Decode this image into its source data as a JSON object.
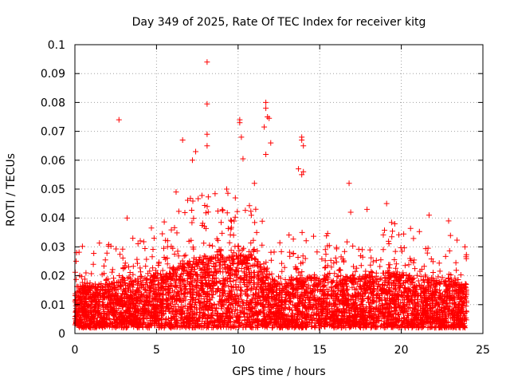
{
  "chart_data": {
    "type": "scatter",
    "title": "Day 349 of 2025, Rate Of TEC Index for receiver kitg",
    "xlabel": "GPS time / hours",
    "ylabel": "ROTI / TECUs",
    "xlim": [
      0,
      25
    ],
    "ylim": [
      0,
      0.1
    ],
    "xticks": [
      0,
      5,
      10,
      15,
      20,
      25
    ],
    "xtick_labels": [
      "0",
      "5",
      "10",
      "15",
      "20",
      "25"
    ],
    "yticks": [
      0,
      0.01,
      0.02,
      0.03,
      0.04,
      0.05,
      0.06,
      0.07,
      0.08,
      0.09,
      0.1
    ],
    "ytick_labels": [
      "0",
      "0.01",
      "0.02",
      "0.03",
      "0.04",
      "0.05",
      "0.06",
      "0.07",
      "0.08",
      "0.09",
      "0.1"
    ],
    "grid": true,
    "marker": "+",
    "color": "#ff0000",
    "data_range_hours": [
      0,
      24
    ],
    "bulk_floor": 0.002,
    "bulk_profile": {
      "x": [
        0,
        1,
        2,
        3,
        4,
        5,
        6,
        7,
        8,
        9,
        10,
        11,
        12,
        12.5,
        13,
        14,
        15,
        16,
        17,
        18,
        19,
        20,
        21,
        22,
        23,
        24
      ],
      "upper": [
        0.016,
        0.016,
        0.017,
        0.018,
        0.018,
        0.02,
        0.022,
        0.025,
        0.026,
        0.026,
        0.027,
        0.026,
        0.02,
        0.017,
        0.018,
        0.02,
        0.019,
        0.018,
        0.019,
        0.02,
        0.021,
        0.02,
        0.019,
        0.018,
        0.018,
        0.017
      ]
    },
    "notable_points": [
      {
        "x": 0.1,
        "y": 0.028
      },
      {
        "x": 2.7,
        "y": 0.074
      },
      {
        "x": 3.2,
        "y": 0.04
      },
      {
        "x": 6.2,
        "y": 0.049
      },
      {
        "x": 6.6,
        "y": 0.067
      },
      {
        "x": 7.2,
        "y": 0.06
      },
      {
        "x": 7.4,
        "y": 0.063
      },
      {
        "x": 8.1,
        "y": 0.094
      },
      {
        "x": 8.1,
        "y": 0.0795
      },
      {
        "x": 8.1,
        "y": 0.069
      },
      {
        "x": 8.1,
        "y": 0.065
      },
      {
        "x": 9.3,
        "y": 0.05
      },
      {
        "x": 10.1,
        "y": 0.074
      },
      {
        "x": 10.1,
        "y": 0.073
      },
      {
        "x": 10.2,
        "y": 0.068
      },
      {
        "x": 10.3,
        "y": 0.0605
      },
      {
        "x": 11.0,
        "y": 0.052
      },
      {
        "x": 11.7,
        "y": 0.08
      },
      {
        "x": 11.7,
        "y": 0.078
      },
      {
        "x": 11.8,
        "y": 0.075
      },
      {
        "x": 11.6,
        "y": 0.0715
      },
      {
        "x": 11.9,
        "y": 0.0745
      },
      {
        "x": 12.0,
        "y": 0.066
      },
      {
        "x": 11.7,
        "y": 0.062
      },
      {
        "x": 13.7,
        "y": 0.057
      },
      {
        "x": 13.9,
        "y": 0.068
      },
      {
        "x": 13.9,
        "y": 0.067
      },
      {
        "x": 14.0,
        "y": 0.065
      },
      {
        "x": 14.0,
        "y": 0.056
      },
      {
        "x": 13.9,
        "y": 0.055
      },
      {
        "x": 16.8,
        "y": 0.052
      },
      {
        "x": 16.9,
        "y": 0.042
      },
      {
        "x": 17.9,
        "y": 0.043
      },
      {
        "x": 19.1,
        "y": 0.045
      },
      {
        "x": 19.6,
        "y": 0.038
      },
      {
        "x": 21.7,
        "y": 0.041
      },
      {
        "x": 22.9,
        "y": 0.039
      },
      {
        "x": 23.9,
        "y": 0.03
      }
    ]
  }
}
